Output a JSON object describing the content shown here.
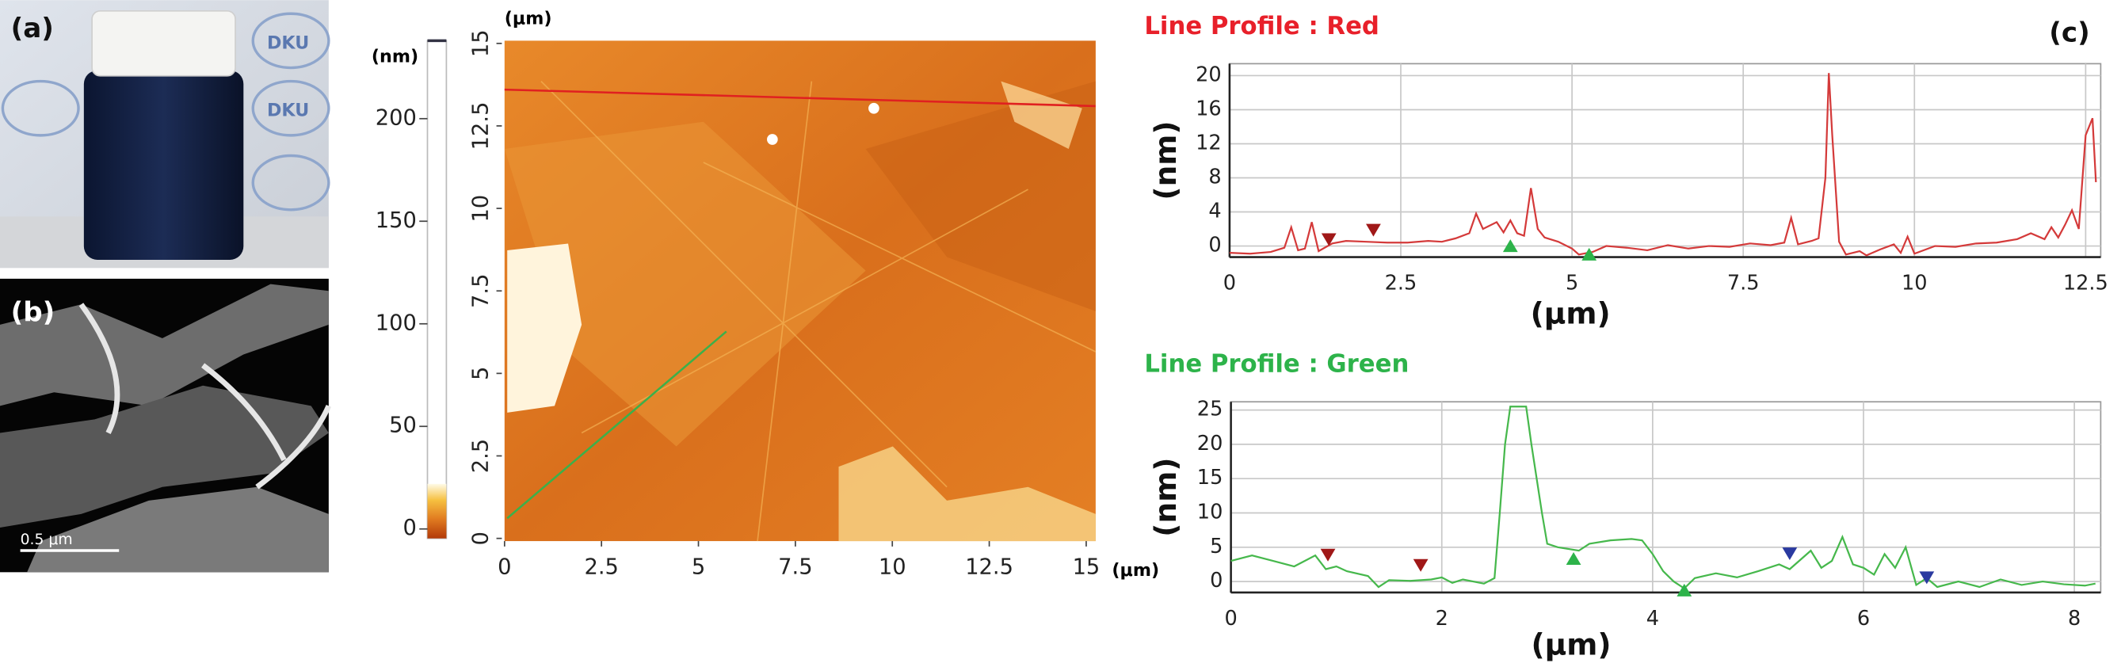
{
  "panel_labels": [
    "(a)",
    "(b)",
    "(c)"
  ],
  "photo_text": {
    "logo": "DKU",
    "scale_bar": "0.5 μm"
  },
  "afm": {
    "axis_label": "(μm)",
    "unit_label": "(nm)",
    "xlim": [
      0,
      15
    ],
    "ylim": [
      0,
      15
    ],
    "xticks": [
      0,
      2.5,
      5,
      7.5,
      10,
      12.5,
      15
    ],
    "yticks": [
      0,
      2.5,
      5,
      7.5,
      10,
      12.5,
      15
    ],
    "colorbar": {
      "lim": [
        -4.6,
        238
      ],
      "ticks": [
        0,
        50,
        100,
        150,
        200
      ],
      "colored_to": 22
    },
    "scan_lines": [
      {
        "color": "#e02020",
        "x": [
          0,
          15.24
        ],
        "y": [
          13.6,
          13.1
        ]
      },
      {
        "color": "#3cb04a",
        "x": [
          0.07,
          5.72
        ],
        "y": [
          0.61,
          6.27
        ]
      }
    ]
  },
  "chart_data": [
    {
      "type": "line",
      "title": "Line Profile : Red",
      "title_color": "#e8202a",
      "color": "#d43a3a",
      "x_label": "(μm)",
      "y_label": "(nm)",
      "grid": true,
      "xlim": [
        0,
        12.72
      ],
      "ylim": [
        -1.3,
        21.4
      ],
      "xticks": [
        0,
        2.5,
        5,
        7.5,
        10,
        12.5
      ],
      "yticks": [
        0,
        4,
        8,
        12,
        16,
        20
      ],
      "x": [
        0,
        0.3,
        0.6,
        0.8,
        0.9,
        1.0,
        1.1,
        1.2,
        1.3,
        1.5,
        1.7,
        2.0,
        2.3,
        2.6,
        2.9,
        3.1,
        3.3,
        3.5,
        3.6,
        3.7,
        3.9,
        4.0,
        4.1,
        4.2,
        4.3,
        4.4,
        4.5,
        4.6,
        4.8,
        5.0,
        5.1,
        5.3,
        5.5,
        5.8,
        6.1,
        6.4,
        6.7,
        7.0,
        7.3,
        7.6,
        7.9,
        8.1,
        8.2,
        8.3,
        8.5,
        8.6,
        8.7,
        8.75,
        8.8,
        8.9,
        9.0,
        9.2,
        9.3,
        9.5,
        9.7,
        9.8,
        9.9,
        10.0,
        10.3,
        10.6,
        10.9,
        11.2,
        11.5,
        11.7,
        11.9,
        12.0,
        12.1,
        12.2,
        12.3,
        12.4,
        12.5,
        12.6,
        12.65
      ],
      "values": [
        -0.8,
        -0.9,
        -0.7,
        -0.2,
        2.2,
        -0.5,
        -0.3,
        2.8,
        -0.6,
        0.3,
        0.6,
        0.5,
        0.4,
        0.4,
        0.6,
        0.5,
        0.9,
        1.5,
        3.8,
        2.0,
        2.8,
        1.6,
        3.0,
        1.5,
        1.2,
        6.8,
        2.0,
        1.0,
        0.5,
        -0.3,
        -1.0,
        -0.7,
        0.0,
        -0.2,
        -0.5,
        0.1,
        -0.3,
        0.0,
        -0.1,
        0.3,
        0.1,
        0.4,
        3.3,
        0.2,
        0.6,
        0.9,
        8,
        20.3,
        13,
        0.5,
        -1.0,
        -0.6,
        -1.1,
        -0.4,
        0.2,
        -0.8,
        1.1,
        -0.9,
        0.0,
        -0.1,
        0.3,
        0.4,
        0.8,
        1.5,
        0.8,
        2.2,
        1.0,
        2.5,
        4.2,
        2.0,
        13.0,
        15.0,
        7.5
      ],
      "markers": [
        {
          "x": 1.45,
          "y": 0.8,
          "color": "#a01818",
          "shape": "down"
        },
        {
          "x": 2.1,
          "y": 1.9,
          "color": "#a01818",
          "shape": "down"
        },
        {
          "x": 4.1,
          "y": 0.0,
          "color": "#2db34a",
          "shape": "up"
        },
        {
          "x": 5.25,
          "y": -1.0,
          "color": "#2db34a",
          "shape": "up"
        }
      ]
    },
    {
      "type": "line",
      "title": "Line Profile : Green",
      "title_color": "#2db34a",
      "color": "#46b84c",
      "x_label": "(μm)",
      "y_label": "(nm)",
      "grid": true,
      "xlim": [
        0,
        8.25
      ],
      "ylim": [
        -1.6,
        26.2
      ],
      "xticks": [
        0,
        2,
        4,
        6,
        8
      ],
      "yticks": [
        0,
        5,
        10,
        15,
        20,
        25
      ],
      "x": [
        0,
        0.2,
        0.4,
        0.6,
        0.8,
        0.9,
        1.0,
        1.1,
        1.3,
        1.4,
        1.5,
        1.7,
        1.9,
        2.0,
        2.1,
        2.2,
        2.4,
        2.5,
        2.55,
        2.6,
        2.65,
        2.8,
        2.85,
        2.95,
        3.0,
        3.1,
        3.3,
        3.4,
        3.6,
        3.8,
        3.9,
        4.0,
        4.1,
        4.2,
        4.3,
        4.4,
        4.6,
        4.8,
        5.0,
        5.2,
        5.3,
        5.5,
        5.6,
        5.7,
        5.8,
        5.9,
        6.0,
        6.1,
        6.2,
        6.3,
        6.4,
        6.5,
        6.6,
        6.7,
        6.9,
        7.1,
        7.3,
        7.5,
        7.7,
        7.9,
        8.1,
        8.2
      ],
      "values": [
        3.0,
        3.8,
        3.0,
        2.2,
        3.8,
        1.8,
        2.2,
        1.5,
        0.8,
        -0.8,
        0.2,
        0.1,
        0.3,
        0.6,
        -0.2,
        0.3,
        -0.3,
        0.5,
        10,
        20,
        25.5,
        25.5,
        20,
        10,
        5.5,
        5.0,
        4.5,
        5.5,
        6.0,
        6.2,
        6.0,
        4.0,
        1.5,
        0.0,
        -1.0,
        0.5,
        1.2,
        0.6,
        1.5,
        2.5,
        1.8,
        4.5,
        2.0,
        3.0,
        6.5,
        2.5,
        2.0,
        1.0,
        4.0,
        2.0,
        5.0,
        -0.5,
        0.5,
        -0.8,
        0.0,
        -0.8,
        0.3,
        -0.5,
        0.0,
        -0.4,
        -0.6,
        -0.3
      ],
      "markers": [
        {
          "x": 0.92,
          "y": 3.9,
          "color": "#a01818",
          "shape": "down"
        },
        {
          "x": 1.8,
          "y": 2.4,
          "color": "#a01818",
          "shape": "down"
        },
        {
          "x": 3.25,
          "y": 3.3,
          "color": "#2db34a",
          "shape": "up"
        },
        {
          "x": 4.3,
          "y": -1.3,
          "color": "#2db34a",
          "shape": "up"
        },
        {
          "x": 5.3,
          "y": 4.1,
          "color": "#2a3aa0",
          "shape": "down"
        },
        {
          "x": 6.6,
          "y": 0.6,
          "color": "#2a3aa0",
          "shape": "down"
        }
      ]
    }
  ]
}
